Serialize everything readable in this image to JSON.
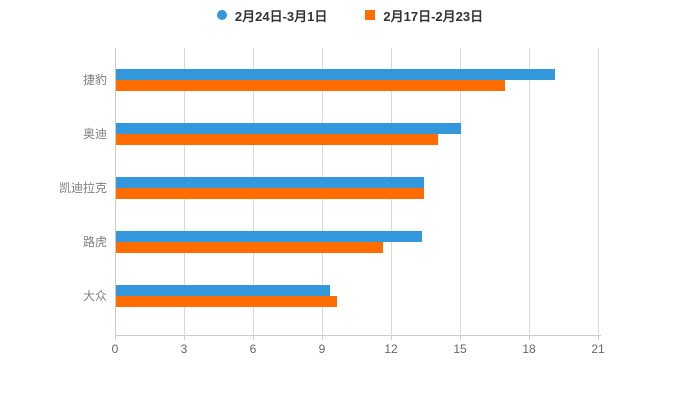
{
  "chart_data": {
    "type": "bar",
    "orientation": "horizontal",
    "title": "",
    "categories": [
      "捷豹",
      "奥迪",
      "凯迪拉克",
      "路虎",
      "大众"
    ],
    "series": [
      {
        "name": "2月24日-3月1日",
        "color": "#3398DB",
        "marker": "circle",
        "values": [
          19.1,
          15.0,
          13.4,
          13.3,
          9.3
        ]
      },
      {
        "name": "2月17日-2月23日",
        "color": "#FF6C00",
        "marker": "square",
        "values": [
          16.9,
          14.0,
          13.4,
          11.6,
          9.6
        ]
      }
    ],
    "x_ticks": [
      0,
      3,
      6,
      9,
      12,
      15,
      18,
      21
    ],
    "xlim": [
      0,
      21
    ],
    "grid": true,
    "legend_position": "top",
    "colors": {
      "background": "#ffffff",
      "axis_line": "#cccccc",
      "grid_line": "#d9d9d9",
      "tick_label": "#666666",
      "category_label": "#808080",
      "legend_text": "#333333"
    }
  }
}
